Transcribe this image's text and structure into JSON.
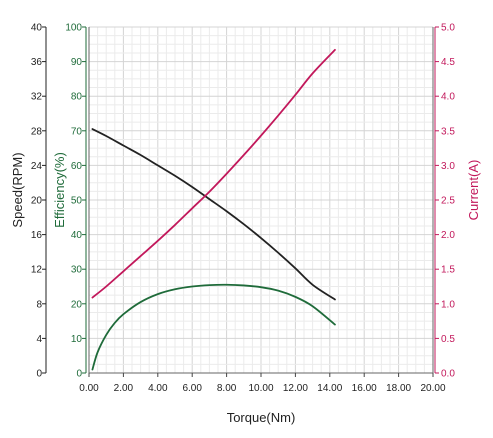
{
  "chart_data": {
    "type": "line",
    "xlabel": "Torque(Nm)",
    "xlim": [
      0,
      20
    ],
    "x_ticks": [
      "0.00",
      "2.00",
      "4.00",
      "6.00",
      "8.00",
      "10.00",
      "12.00",
      "14.00",
      "16.00",
      "18.00",
      "20.00"
    ],
    "grid": true,
    "axes": {
      "speed": {
        "label": "Speed(RPM)",
        "range": [
          0,
          40
        ],
        "ticks": [
          "0",
          "4",
          "8",
          "12",
          "16",
          "20",
          "24",
          "28",
          "32",
          "36",
          "40"
        ],
        "color": "#222222"
      },
      "efficiency": {
        "label": "Efficiency(%)",
        "range": [
          0,
          100
        ],
        "ticks": [
          "0",
          "10",
          "20",
          "30",
          "40",
          "50",
          "60",
          "70",
          "80",
          "90",
          "100"
        ],
        "color": "#1f6b3a"
      },
      "current": {
        "label": "Current(A)",
        "range": [
          0,
          5
        ],
        "ticks": [
          "0.0",
          "0.5",
          "1.0",
          "1.5",
          "2.0",
          "2.5",
          "3.0",
          "3.5",
          "4.0",
          "4.5",
          "5.0"
        ],
        "color": "#c2185b"
      }
    },
    "series": [
      {
        "axis": "speed",
        "color": "#222222",
        "x": [
          0.2,
          1,
          2,
          3,
          4,
          5,
          6,
          7,
          8,
          9,
          10,
          11,
          12,
          13,
          14.3
        ],
        "y": [
          28.2,
          27.4,
          26.3,
          25.2,
          24.0,
          22.8,
          21.5,
          20.1,
          18.7,
          17.2,
          15.6,
          13.9,
          12.1,
          10.2,
          8.5
        ]
      },
      {
        "axis": "efficiency",
        "color": "#1f6b3a",
        "x": [
          0.2,
          0.5,
          1,
          1.5,
          2,
          3,
          4,
          5,
          6,
          7,
          8,
          9,
          10,
          11,
          12,
          13,
          14.3
        ],
        "y": [
          1,
          6,
          11,
          14.5,
          17,
          20.5,
          22.8,
          24.2,
          25,
          25.4,
          25.5,
          25.3,
          24.8,
          23.8,
          22,
          19.3,
          14
        ]
      },
      {
        "axis": "current",
        "color": "#c2185b",
        "x": [
          0.2,
          1,
          2,
          3,
          4,
          5,
          6,
          7,
          8,
          9,
          10,
          11,
          12,
          13,
          14.3
        ],
        "y": [
          1.09,
          1.25,
          1.47,
          1.69,
          1.91,
          2.14,
          2.38,
          2.62,
          2.88,
          3.15,
          3.43,
          3.72,
          4.02,
          4.33,
          4.67
        ]
      }
    ]
  }
}
